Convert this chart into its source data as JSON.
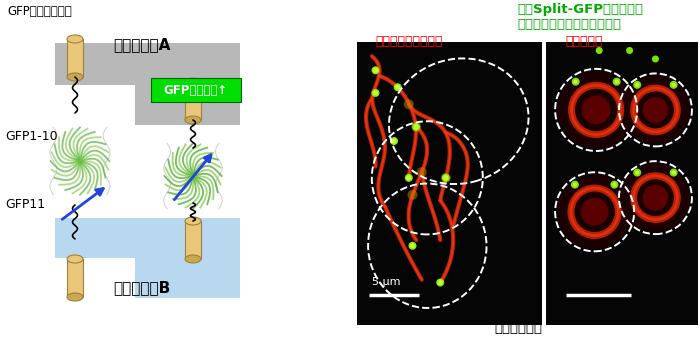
{
  "bg_color": "#ffffff",
  "diagram": {
    "gfp_no_signal_label": "GFPシグナルなし",
    "organelle_a_label": "オルガネラA",
    "organelle_b_label": "オルガネラB",
    "gfp_signal_label": "GFPシグナル↑",
    "gfp110_label": "GFP1-10",
    "gfp11_label": "GFP11",
    "gray_color": "#b8b8b8",
    "light_blue_color": "#b8d8f0",
    "green_box_color": "#00cc00",
    "tan_color": "#e8c878",
    "blue_arrow_color": "#2244dd"
  },
  "right_panel": {
    "title_green": "緑：Split-GFPで検出した",
    "title_green2": "オルガネラコンタクトサイト",
    "label_left_red": "赤：ミトコンドリア",
    "label_right_red": "赤：小胞体",
    "scale_bar": "5 μm",
    "dotted_label": "点線：細胞膜"
  }
}
